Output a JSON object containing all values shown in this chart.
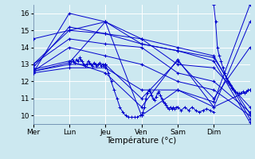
{
  "background_color": "#cce8f0",
  "grid_color": "#ffffff",
  "line_color": "#0000cd",
  "xlabel": "Température (°c)",
  "xlim": [
    0,
    6.0
  ],
  "ylim": [
    9.5,
    16.5
  ],
  "yticks": [
    10,
    11,
    12,
    13,
    14,
    15,
    16
  ],
  "xtick_labels": [
    "Mer",
    "Lun",
    "Jeu",
    "Ven",
    "Sam",
    "Dim"
  ],
  "xtick_positions": [
    0.0,
    1.0,
    2.0,
    3.0,
    4.0,
    5.0
  ],
  "series": [
    [
      12.5,
      16.0,
      15.5,
      14.5,
      14.0,
      13.5,
      9.8
    ],
    [
      12.8,
      15.2,
      14.8,
      14.2,
      13.8,
      13.2,
      9.6
    ],
    [
      14.5,
      15.0,
      15.5,
      14.2,
      13.8,
      13.4,
      10.1
    ],
    [
      13.0,
      15.0,
      14.8,
      14.5,
      13.0,
      12.8,
      10.5
    ],
    [
      13.0,
      14.5,
      14.2,
      14.0,
      12.5,
      12.0,
      10.2
    ],
    [
      12.6,
      14.0,
      13.5,
      13.0,
      12.0,
      11.5,
      10.0
    ],
    [
      12.6,
      13.1,
      15.5,
      10.0,
      11.5,
      10.8,
      16.5
    ],
    [
      12.7,
      13.2,
      12.5,
      10.5,
      13.3,
      10.5,
      15.5
    ],
    [
      12.6,
      13.0,
      13.0,
      11.0,
      13.2,
      11.0,
      14.0
    ],
    [
      12.5,
      12.8,
      12.8,
      11.5,
      11.5,
      10.5,
      11.5
    ]
  ],
  "wiggly_lun": {
    "x": [
      1.0,
      1.04,
      1.08,
      1.12,
      1.16,
      1.2,
      1.24,
      1.28,
      1.32,
      1.36,
      1.4,
      1.44,
      1.48,
      1.52,
      1.56,
      1.6,
      1.64,
      1.68,
      1.72,
      1.76,
      1.8,
      1.84,
      1.88,
      1.92,
      1.96,
      2.0
    ],
    "y": [
      13.1,
      13.2,
      13.3,
      13.2,
      13.1,
      13.3,
      13.2,
      13.4,
      13.3,
      13.2,
      13.0,
      12.9,
      13.0,
      13.2,
      13.1,
      13.0,
      12.9,
      13.1,
      13.0,
      12.9,
      13.0,
      13.1,
      12.9,
      13.0,
      12.9,
      13.0
    ]
  },
  "wiggly_jeu_down": {
    "x": [
      2.0,
      2.08,
      2.16,
      2.24,
      2.32,
      2.4,
      2.48,
      2.56,
      2.64,
      2.72,
      2.8,
      2.88,
      2.96,
      3.0
    ],
    "y": [
      13.0,
      12.5,
      12.0,
      11.5,
      11.0,
      10.5,
      10.2,
      10.0,
      9.9,
      9.9,
      9.9,
      9.9,
      10.0,
      10.0
    ]
  },
  "wiggly_ven": {
    "x": [
      3.0,
      3.04,
      3.08,
      3.12,
      3.16,
      3.2,
      3.24,
      3.28,
      3.32,
      3.36,
      3.4,
      3.44,
      3.48,
      3.52,
      3.56,
      3.6,
      3.64,
      3.68,
      3.72,
      3.76,
      3.8,
      3.84,
      3.88,
      3.92,
      3.96,
      4.0
    ],
    "y": [
      10.0,
      10.2,
      10.5,
      11.0,
      11.3,
      11.5,
      11.4,
      11.2,
      11.0,
      10.9,
      11.1,
      11.3,
      11.4,
      11.2,
      11.0,
      10.8,
      10.7,
      10.6,
      10.5,
      10.4,
      10.5,
      10.4,
      10.5,
      10.4,
      10.5,
      10.5
    ]
  },
  "wiggly_sam": {
    "x": [
      4.0,
      4.1,
      4.2,
      4.3,
      4.4,
      4.5,
      4.6,
      4.7,
      4.8,
      4.9,
      5.0
    ],
    "y": [
      10.5,
      10.3,
      10.5,
      10.3,
      10.5,
      10.3,
      10.2,
      10.3,
      10.4,
      10.3,
      10.2
    ]
  },
  "wiggly_dim": {
    "x": [
      5.0,
      5.05,
      5.1,
      5.15,
      5.2,
      5.25,
      5.3,
      5.35,
      5.4,
      5.45,
      5.5,
      5.55,
      5.6,
      5.65,
      5.7,
      5.75,
      5.8,
      5.85,
      5.9,
      5.95,
      6.0
    ],
    "y": [
      16.5,
      15.5,
      14.0,
      13.5,
      13.2,
      12.8,
      12.5,
      12.2,
      12.0,
      11.8,
      11.6,
      11.5,
      11.4,
      11.3,
      11.3,
      11.3,
      11.4,
      11.3,
      11.4,
      11.5,
      11.5
    ]
  }
}
